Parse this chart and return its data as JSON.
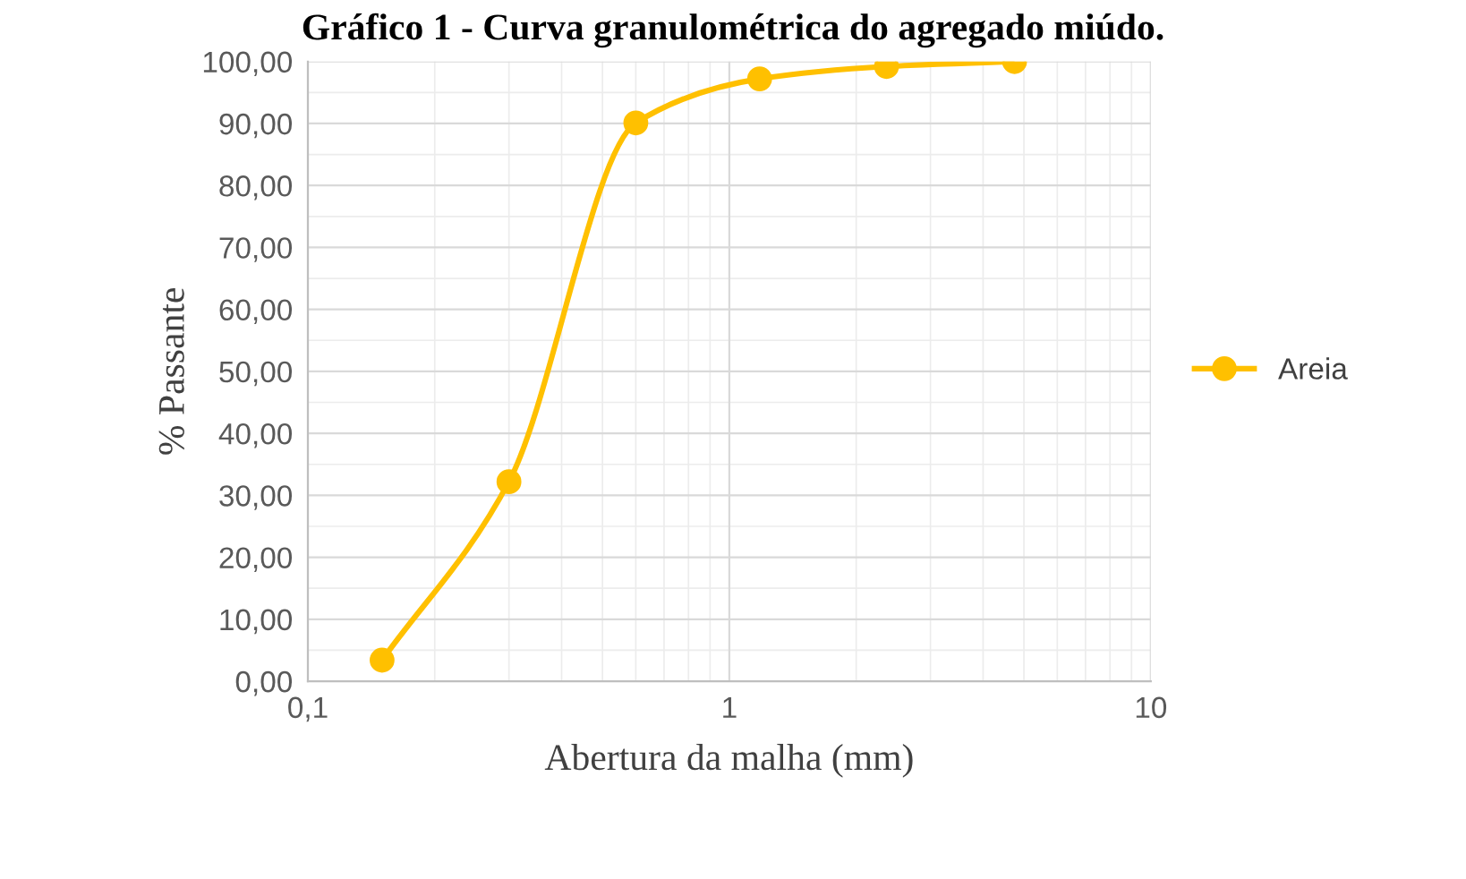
{
  "chart_data": {
    "type": "line",
    "title": "Gráfico 1 - Curva granulométrica do agregado miúdo.",
    "xlabel": "Abertura da malha (mm)",
    "ylabel": "% Passante",
    "x": [
      0.15,
      0.3,
      0.6,
      1.18,
      2.36,
      4.75
    ],
    "series": [
      {
        "name": "Areia",
        "color": "#ffc000",
        "values": [
          3.4,
          32.2,
          90.1,
          97.2,
          99.2,
          100.0
        ]
      }
    ],
    "log": "x",
    "xlim": [
      0.1,
      10
    ],
    "xticks": [
      {
        "value": 0.1,
        "label": "0,1"
      },
      1,
      10
    ],
    "ylim": [
      0,
      100
    ],
    "yticks": [
      {
        "value": 0,
        "label": "0,00"
      },
      {
        "value": 10,
        "label": "10,00"
      },
      {
        "value": 20,
        "label": "20,00"
      },
      {
        "value": 30,
        "label": "30,00"
      },
      {
        "value": 40,
        "label": "40,00"
      },
      {
        "value": 50,
        "label": "50,00"
      },
      {
        "value": 60,
        "label": "60,00"
      },
      {
        "value": 70,
        "label": "70,00"
      },
      {
        "value": 80,
        "label": "80,00"
      },
      {
        "value": 90,
        "label": "90,00"
      },
      {
        "value": 100,
        "label": "100,00"
      }
    ],
    "grid": true,
    "legend": "right",
    "marker": "circle",
    "line_style": "solid"
  }
}
